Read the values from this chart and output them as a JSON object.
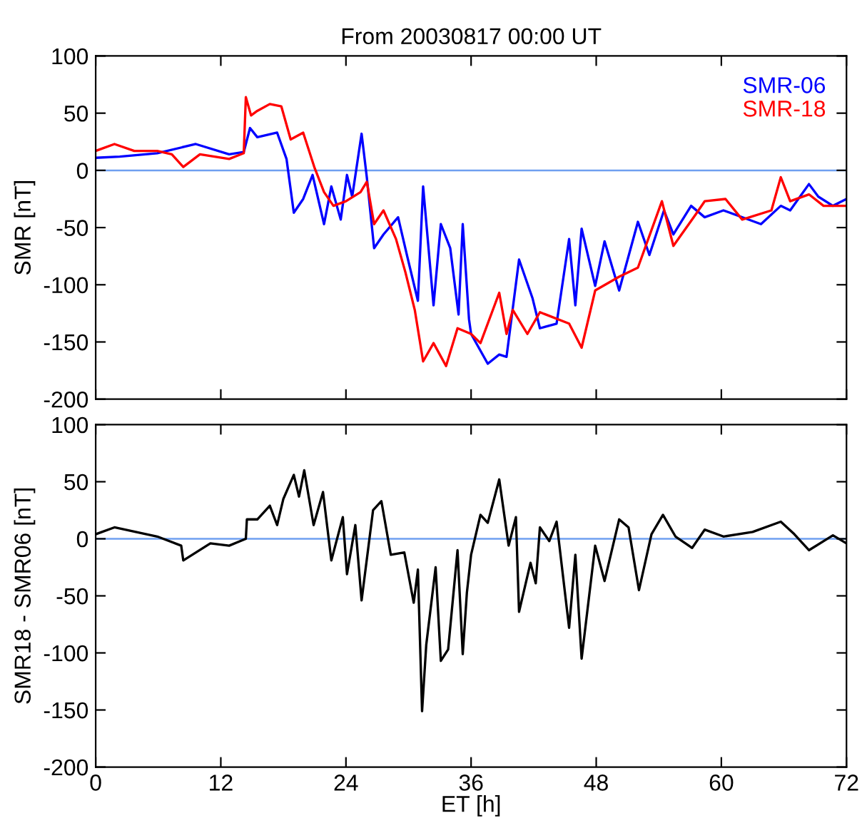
{
  "chart_data": [
    {
      "type": "line",
      "title": "From 20030817 00:00 UT",
      "ylabel": "SMR [nT]",
      "xlim": [
        0,
        72
      ],
      "xticks": [
        0,
        12,
        24,
        36,
        48,
        60,
        72
      ],
      "ylim": [
        -200,
        100
      ],
      "yticks": [
        -200,
        -150,
        -100,
        -50,
        0,
        50,
        100
      ],
      "tick_labels": "y",
      "grid": false,
      "legend": "top right",
      "ref_lines": [
        {
          "axis": "y",
          "value": 0,
          "color": "#6f9ff0"
        }
      ],
      "series": [
        {
          "name": "SMR-06",
          "color": "#0000ff",
          "x": [
            0,
            2.3,
            5.9,
            9.6,
            12.8,
            14.2,
            14.8,
            15.5,
            17.4,
            18.3,
            19,
            19.9,
            20.8,
            21.9,
            22.6,
            23.5,
            24.1,
            24.6,
            25.5,
            26,
            26.7,
            27.6,
            29,
            29.9,
            30.9,
            31.4,
            32.4,
            33.1,
            34,
            34.8,
            35.2,
            35.8,
            36,
            37.6,
            38.7,
            39.4,
            40.6,
            41.9,
            42.6,
            44.2,
            45.4,
            46,
            46.6,
            47.9,
            48.8,
            50.2,
            52,
            53.1,
            54.5,
            55.4,
            57.1,
            58.4,
            60.2,
            63.8,
            65.7,
            66.6,
            68.4,
            69.3,
            70.7,
            72
          ],
          "values": [
            11,
            12,
            15,
            23,
            14,
            16,
            37,
            29,
            33,
            10,
            -37,
            -25,
            -4,
            -47,
            -14,
            -43,
            -4,
            -23,
            32,
            -6,
            -68,
            -56,
            -41,
            -76,
            -114,
            -14,
            -118,
            -47,
            -68,
            -126,
            -47,
            -130,
            -143,
            -169,
            -161,
            -163,
            -78,
            -112,
            -138,
            -134,
            -60,
            -118,
            -51,
            -101,
            -62,
            -105,
            -45,
            -74,
            -35,
            -56,
            -31,
            -41,
            -35,
            -47,
            -31,
            -35,
            -12,
            -23,
            -31,
            -25
          ]
        },
        {
          "name": "SMR-18",
          "color": "#ff0000",
          "x": [
            0,
            1.8,
            3.7,
            5.9,
            7.3,
            8.4,
            10,
            12.8,
            14.2,
            14.4,
            14.9,
            15.5,
            16.7,
            17.8,
            18.7,
            19.9,
            21,
            21.9,
            22.8,
            24,
            25.4,
            26,
            26.7,
            27.6,
            28.8,
            29.7,
            30.6,
            31.4,
            32.4,
            33.6,
            34.7,
            36,
            36.9,
            38.7,
            39.4,
            40,
            41.4,
            42.6,
            45.4,
            46.6,
            47.9,
            50.2,
            52,
            54.3,
            55.4,
            57.5,
            58.4,
            60.4,
            62,
            64.8,
            65.7,
            66.6,
            68.4,
            69.8,
            72
          ],
          "values": [
            17,
            23,
            17,
            17,
            14,
            3,
            14,
            10,
            15,
            64,
            48,
            52,
            58,
            56,
            27,
            33,
            2,
            -19,
            -31,
            -27,
            -19,
            -10,
            -47,
            -35,
            -60,
            -89,
            -122,
            -167,
            -151,
            -171,
            -138,
            -143,
            -151,
            -107,
            -143,
            -122,
            -143,
            -124,
            -134,
            -155,
            -105,
            -93,
            -85,
            -27,
            -66,
            -39,
            -27,
            -25,
            -43,
            -35,
            -6,
            -27,
            -21,
            -31,
            -31
          ]
        }
      ]
    },
    {
      "type": "line",
      "xlabel": "ET [h]",
      "ylabel": "SMR18 - SMR06 [nT]",
      "xlim": [
        0,
        72
      ],
      "xticks": [
        0,
        12,
        24,
        36,
        48,
        60,
        72
      ],
      "ylim": [
        -200,
        100
      ],
      "yticks": [
        -200,
        -150,
        -100,
        -50,
        0,
        50,
        100
      ],
      "grid": false,
      "ref_lines": [
        {
          "axis": "y",
          "value": 0,
          "color": "#6f9ff0"
        }
      ],
      "series": [
        {
          "color": "#000000",
          "x": [
            0,
            1.8,
            5.9,
            8.2,
            8.4,
            11,
            12.8,
            14.4,
            14.5,
            15.5,
            16.7,
            17.4,
            18,
            19,
            19.5,
            20,
            20.9,
            21.8,
            22.6,
            23.7,
            24.1,
            24.9,
            25.5,
            26.6,
            27.4,
            28.3,
            29.6,
            30.5,
            30.9,
            31.3,
            31.7,
            32.6,
            33.1,
            33.8,
            34.7,
            35.2,
            35.6,
            36,
            36.9,
            37.6,
            38.7,
            39.6,
            40.3,
            40.6,
            41.7,
            42.2,
            42.6,
            43.5,
            44.2,
            45.4,
            46,
            46.6,
            47.9,
            48.8,
            50.2,
            51.1,
            52.1,
            53.3,
            54.4,
            55.6,
            57.2,
            58.4,
            60.2,
            63,
            65.7,
            67,
            68.4,
            70.7,
            72
          ],
          "values": [
            4,
            10,
            2,
            -6,
            -19,
            -4,
            -6,
            0,
            17,
            17,
            29,
            12,
            35,
            56,
            37,
            60,
            12,
            41,
            -19,
            19,
            -31,
            12,
            -54,
            25,
            33,
            -14,
            -12,
            -56,
            -27,
            -151,
            -93,
            -25,
            -107,
            -97,
            -10,
            -101,
            -47,
            -14,
            21,
            14,
            52,
            -6,
            19,
            -64,
            -21,
            -39,
            10,
            -2,
            15,
            -78,
            -14,
            -105,
            -6,
            -37,
            17,
            10,
            -45,
            4,
            21,
            2,
            -8,
            8,
            2,
            6,
            15,
            4,
            -10,
            3,
            -4
          ]
        }
      ]
    }
  ]
}
